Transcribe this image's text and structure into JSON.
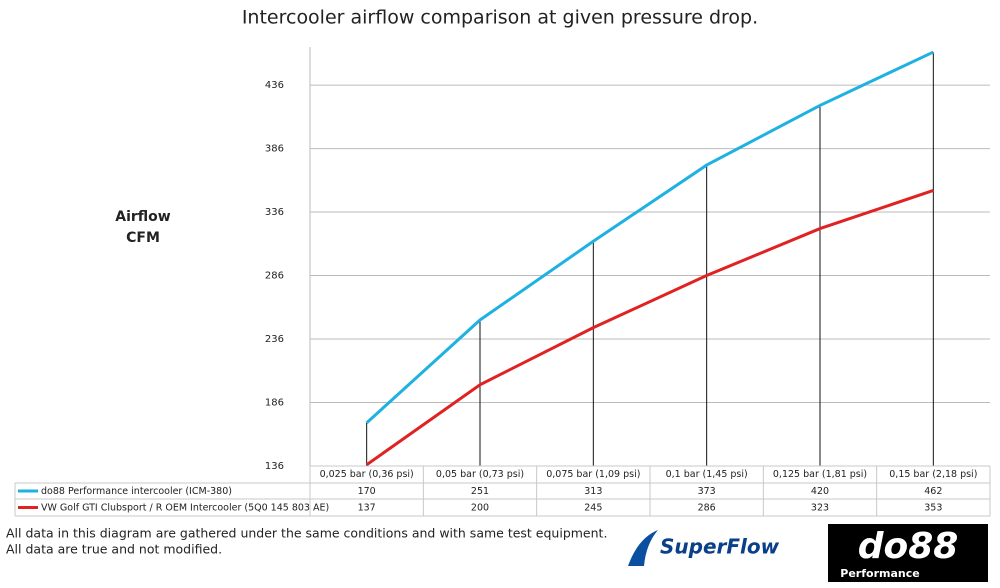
{
  "chart_data": {
    "type": "line",
    "title": "Intercooler airflow comparison at given pressure drop.",
    "ylabel": [
      "Airflow",
      "CFM"
    ],
    "categories": [
      "0,025 bar (0,36 psi)",
      "0,05 bar (0,73 psi)",
      "0,075 bar (1,09 psi)",
      "0,1 bar (1,45 psi)",
      "0,125 bar (1,81 psi)",
      "0,15 bar (2,18 psi)"
    ],
    "series": [
      {
        "name": "do88 Performance intercooler (ICM-380)",
        "color": "#1eb1e1",
        "values": [
          170,
          251,
          313,
          373,
          420,
          462
        ]
      },
      {
        "name": "VW Golf GTI Clubsport / R OEM Intercooler (5Q0 145 803 AE)",
        "color": "#e02222",
        "values": [
          137,
          200,
          245,
          286,
          323,
          353
        ]
      }
    ],
    "ylim": [
      136,
      466
    ],
    "yticks": [
      136,
      186,
      236,
      286,
      336,
      386,
      436
    ],
    "grid": true,
    "notes": [
      "All data in this diagram are gathered under the same conditions and with same test equipment.",
      "All data are true and not modified."
    ],
    "logos": [
      "SuperFlow",
      "do88",
      "Performance"
    ]
  }
}
